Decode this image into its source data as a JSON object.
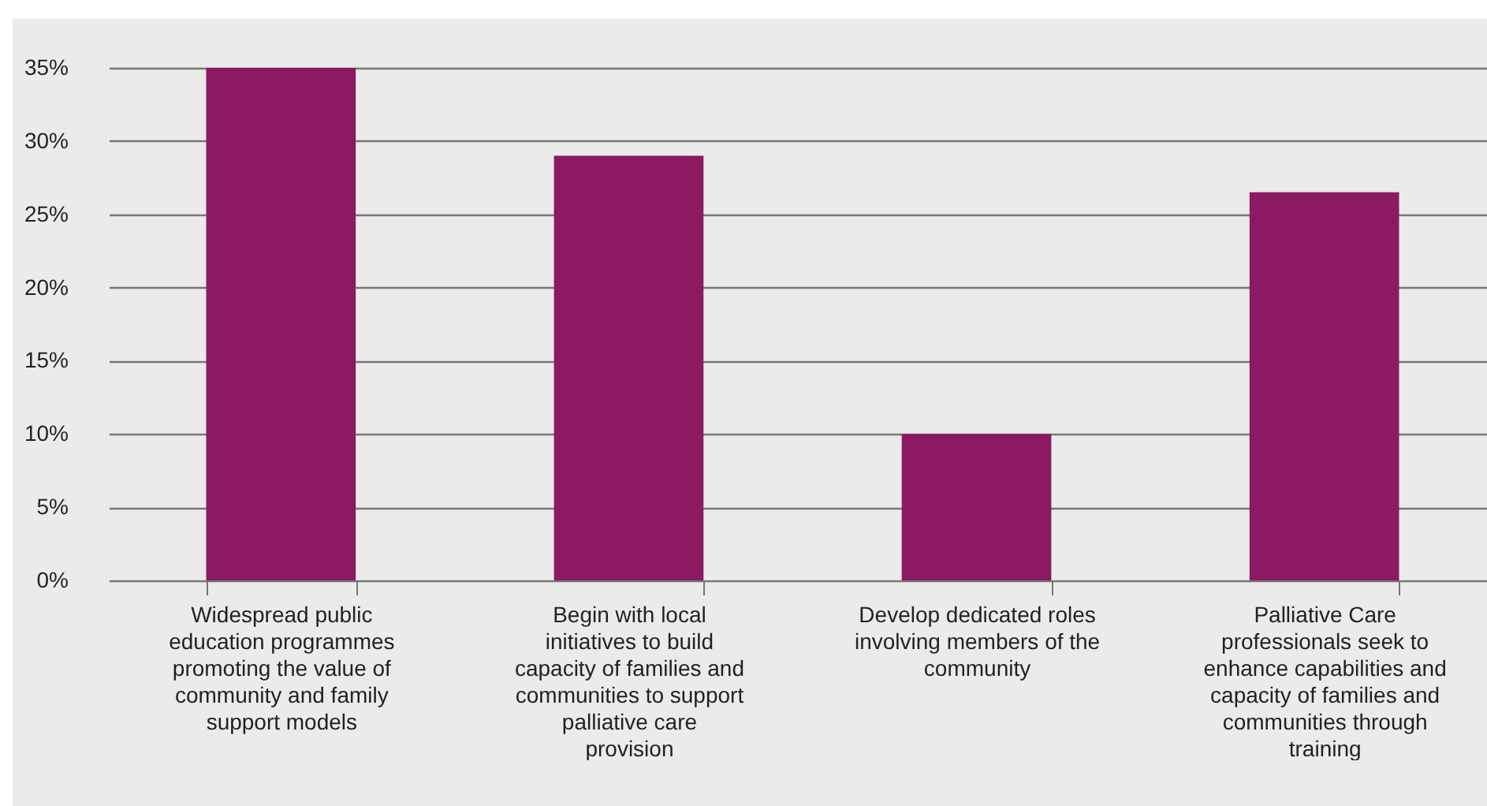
{
  "chart_data": {
    "type": "bar",
    "categories": [
      "Widespread public education programmes promoting the value of community and family support models",
      "Begin with local initiatives to build capacity of families and communities to support palliative care provision",
      "Develop dedicated roles involving members of the community",
      "Palliative Care professionals seek to enhance capabilities and capacity of families and communities through training"
    ],
    "values": [
      35,
      29,
      10,
      26.5
    ],
    "color": "#8b1a62",
    "ylim": [
      0,
      35
    ],
    "yticks": [
      {
        "value": 0,
        "label": "0%"
      },
      {
        "value": 5,
        "label": "5%"
      },
      {
        "value": 10,
        "label": "10%"
      },
      {
        "value": 15,
        "label": "15%"
      },
      {
        "value": 20,
        "label": "20%"
      },
      {
        "value": 25,
        "label": "25%"
      },
      {
        "value": 30,
        "label": "30%"
      },
      {
        "value": 35,
        "label": "35%"
      }
    ],
    "grid": "y"
  }
}
